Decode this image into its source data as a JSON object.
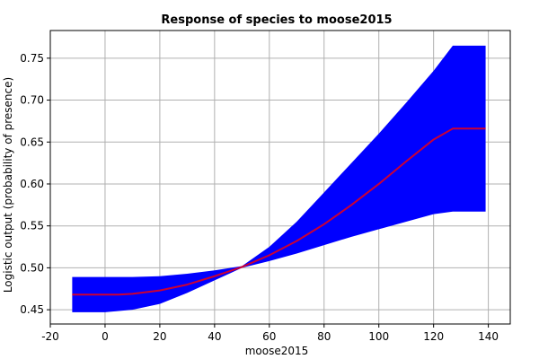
{
  "chart_data": {
    "type": "line",
    "title": "Response of species to moose2015",
    "xlabel": "moose2015",
    "ylabel": "Logistic output (probability of presence)",
    "xlim": [
      -20,
      148
    ],
    "ylim": [
      0.433,
      0.783
    ],
    "x_ticks": [
      -20,
      0,
      20,
      40,
      60,
      80,
      100,
      120,
      140
    ],
    "x_tick_labels": [
      "-20",
      "0",
      "20",
      "40",
      "60",
      "80",
      "100",
      "120",
      "140"
    ],
    "y_ticks": [
      0.45,
      0.5,
      0.55,
      0.6,
      0.65,
      0.7,
      0.75
    ],
    "y_tick_labels": [
      "0.45",
      "0.50",
      "0.55",
      "0.60",
      "0.65",
      "0.70",
      "0.75"
    ],
    "grid": true,
    "colors": {
      "mean_line": "#cc0033",
      "band": "#0000ff",
      "grid": "#b0b0b0"
    },
    "series": [
      {
        "role": "mean",
        "x": [
          -12,
          0,
          5,
          10,
          20,
          30,
          40,
          50,
          60,
          70,
          80,
          90,
          100,
          110,
          120,
          127,
          139
        ],
        "values": [
          0.468,
          0.468,
          0.468,
          0.469,
          0.473,
          0.48,
          0.49,
          0.501,
          0.515,
          0.532,
          0.552,
          0.575,
          0.6,
          0.627,
          0.653,
          0.666,
          0.666
        ]
      },
      {
        "role": "upper-band",
        "x": [
          -12,
          0,
          10,
          20,
          30,
          40,
          50,
          60,
          70,
          80,
          90,
          100,
          110,
          120,
          127,
          139
        ],
        "values": [
          0.489,
          0.489,
          0.489,
          0.49,
          0.493,
          0.497,
          0.502,
          0.525,
          0.555,
          0.59,
          0.625,
          0.66,
          0.697,
          0.735,
          0.765,
          0.765
        ]
      },
      {
        "role": "lower-band",
        "x": [
          -12,
          0,
          10,
          20,
          30,
          40,
          50,
          60,
          70,
          80,
          90,
          100,
          110,
          120,
          127,
          139
        ],
        "values": [
          0.447,
          0.447,
          0.45,
          0.457,
          0.47,
          0.485,
          0.5,
          0.508,
          0.517,
          0.527,
          0.537,
          0.546,
          0.555,
          0.564,
          0.567,
          0.567
        ]
      }
    ]
  }
}
